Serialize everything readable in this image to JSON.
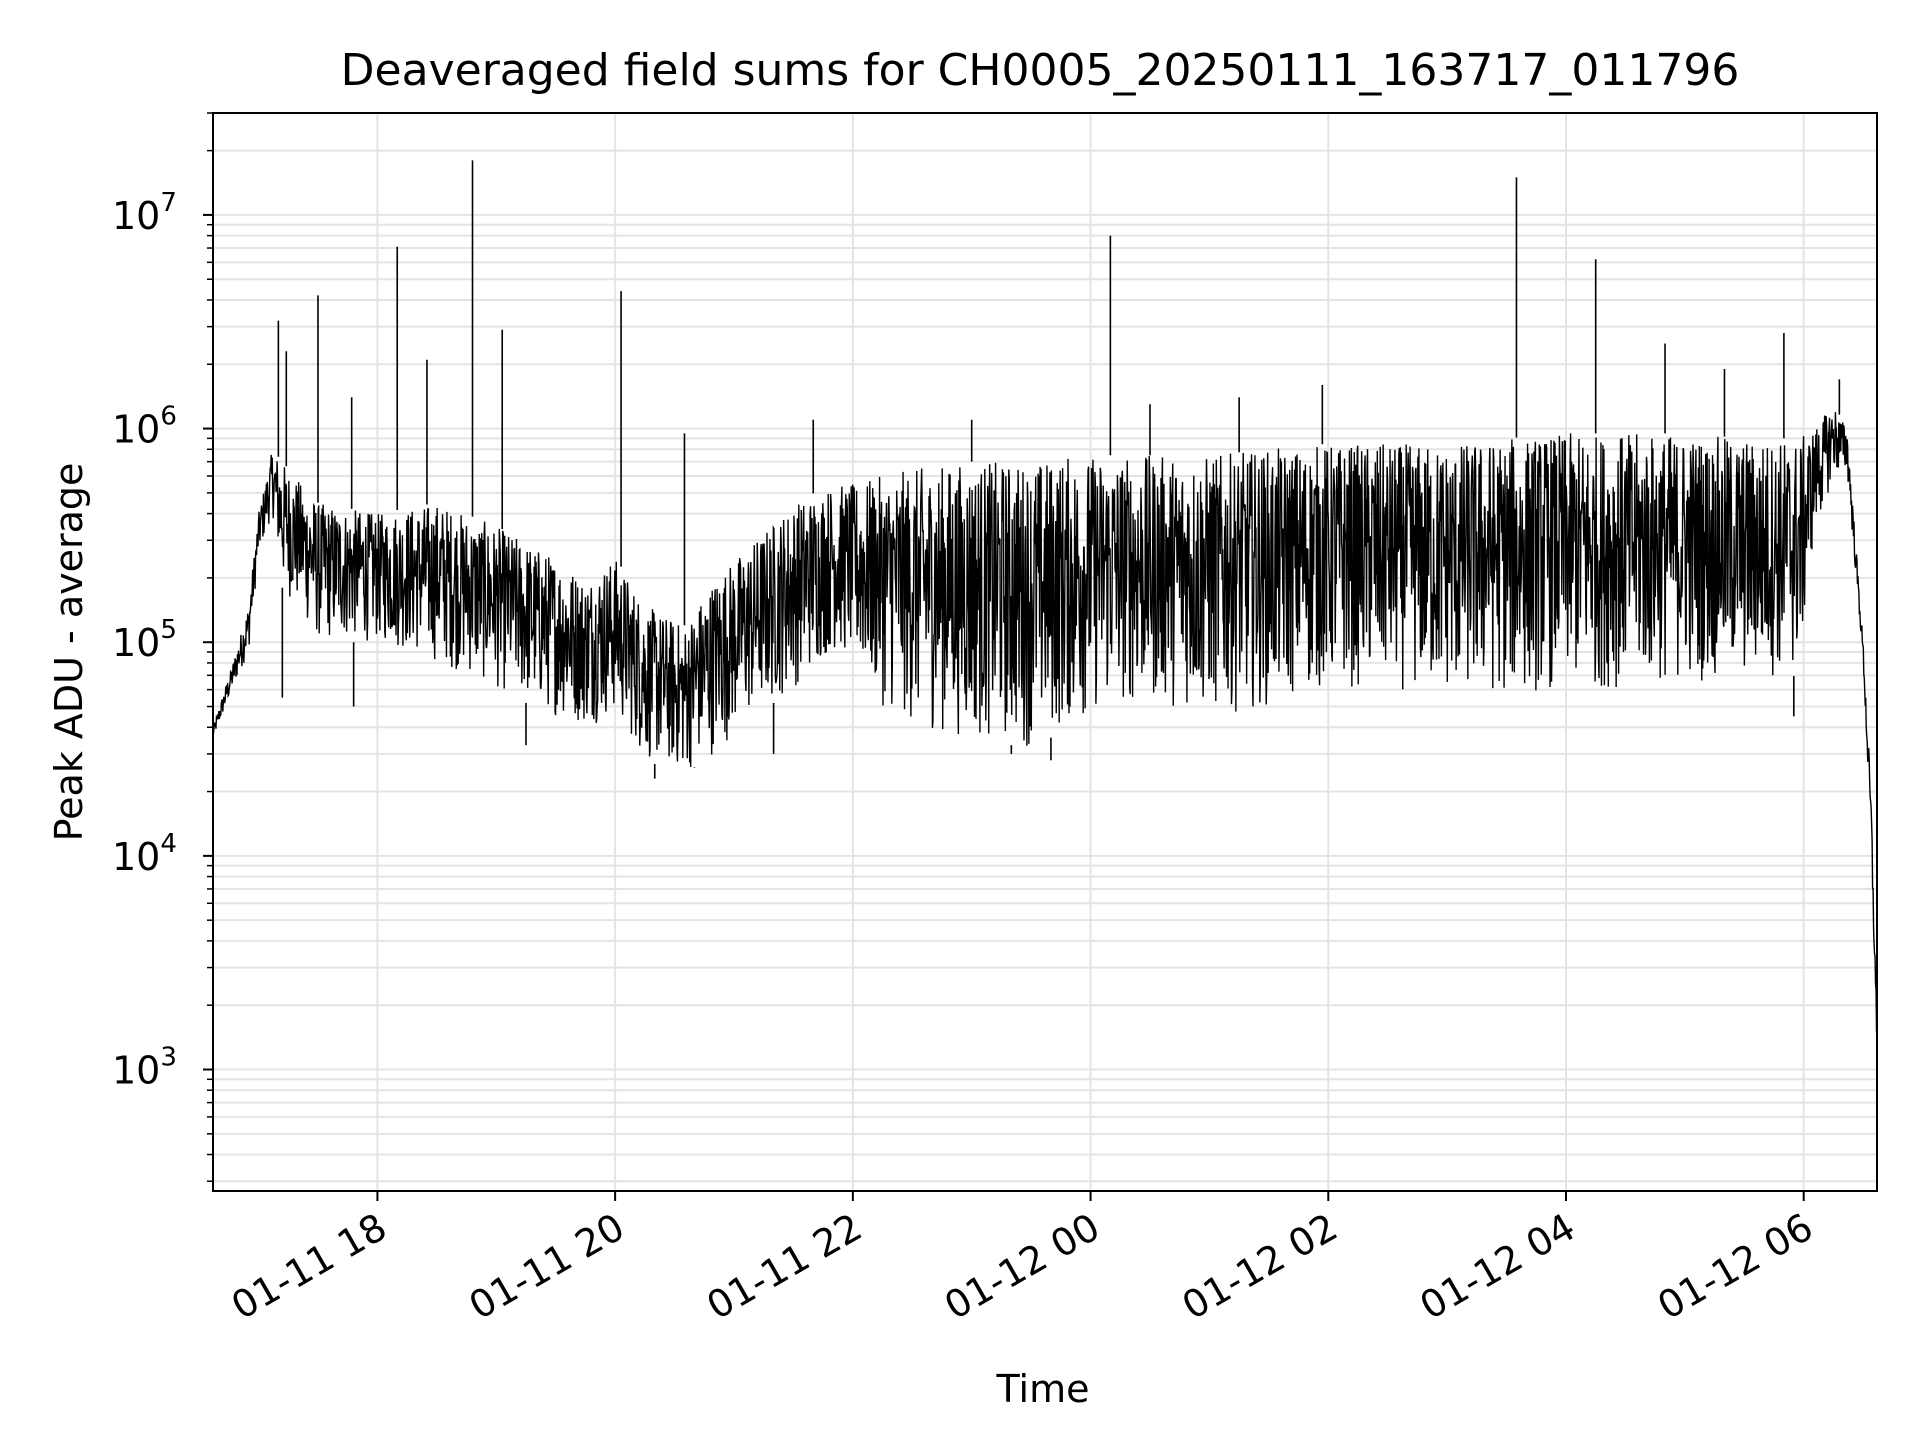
{
  "chart_data": {
    "type": "line",
    "title": "Deaveraged field sums for CH0005_20250111_163717_011796",
    "xlabel": "Time",
    "ylabel": "Peak ADU - average",
    "y_scale": "log",
    "ylim": [
      270,
      30000000
    ],
    "xlim": [
      "2025-01-11 16:37",
      "2025-01-12 06:37"
    ],
    "grid": "major and minor",
    "line_color": "#000000",
    "grid_color": "#e4e4e4",
    "x_ticks": [
      {
        "value": "2025-01-11 18:00",
        "label": "01-11 18"
      },
      {
        "value": "2025-01-11 20:00",
        "label": "01-11 20"
      },
      {
        "value": "2025-01-11 22:00",
        "label": "01-11 22"
      },
      {
        "value": "2025-01-12 00:00",
        "label": "01-12 00"
      },
      {
        "value": "2025-01-12 02:00",
        "label": "01-12 02"
      },
      {
        "value": "2025-01-12 04:00",
        "label": "01-12 04"
      },
      {
        "value": "2025-01-12 06:00",
        "label": "01-12 06"
      }
    ],
    "y_ticks": [
      {
        "value": 1000,
        "base": "10",
        "exp": "3"
      },
      {
        "value": 10000,
        "base": "10",
        "exp": "4"
      },
      {
        "value": 100000,
        "base": "10",
        "exp": "5"
      },
      {
        "value": 1000000,
        "base": "10",
        "exp": "6"
      },
      {
        "value": 10000000,
        "base": "10",
        "exp": "7"
      }
    ],
    "series": [
      {
        "envelope_lower": [
          [
            "2025-01-11 16:37",
            35000
          ],
          [
            "2025-01-11 16:47",
            60000
          ],
          [
            "2025-01-11 16:55",
            90000
          ],
          [
            "2025-01-11 17:00",
            250000
          ],
          [
            "2025-01-11 17:07",
            400000
          ],
          [
            "2025-01-11 17:12",
            180000
          ],
          [
            "2025-01-11 17:30",
            100000
          ],
          [
            "2025-01-11 18:00",
            100000
          ],
          [
            "2025-01-11 18:30",
            80000
          ],
          [
            "2025-01-11 19:00",
            60000
          ],
          [
            "2025-01-11 19:30",
            45000
          ],
          [
            "2025-01-11 19:45",
            40000
          ],
          [
            "2025-01-11 20:00",
            45000
          ],
          [
            "2025-01-11 20:15",
            28000
          ],
          [
            "2025-01-11 20:35",
            24000
          ],
          [
            "2025-01-11 20:50",
            30000
          ],
          [
            "2025-01-11 21:10",
            45000
          ],
          [
            "2025-01-11 21:30",
            60000
          ],
          [
            "2025-01-11 21:50",
            90000
          ],
          [
            "2025-01-11 22:00",
            80000
          ],
          [
            "2025-01-11 22:15",
            50000
          ],
          [
            "2025-01-11 22:30",
            40000
          ],
          [
            "2025-01-11 23:00",
            35000
          ],
          [
            "2025-01-11 23:30",
            32000
          ],
          [
            "2025-01-11 23:50",
            40000
          ],
          [
            "2025-01-12 00:10",
            50000
          ],
          [
            "2025-01-12 00:40",
            50000
          ],
          [
            "2025-01-12 01:00",
            45000
          ],
          [
            "2025-01-12 01:30",
            50000
          ],
          [
            "2025-01-12 02:00",
            60000
          ],
          [
            "2025-01-12 02:30",
            60000
          ],
          [
            "2025-01-12 03:00",
            55000
          ],
          [
            "2025-01-12 03:30",
            55000
          ],
          [
            "2025-01-12 04:00",
            60000
          ],
          [
            "2025-01-12 04:30",
            60000
          ],
          [
            "2025-01-12 05:00",
            65000
          ],
          [
            "2025-01-12 05:30",
            65000
          ],
          [
            "2025-01-12 05:58",
            70000
          ],
          [
            "2025-01-12 06:05",
            300000
          ],
          [
            "2025-01-12 06:15",
            600000
          ],
          [
            "2025-01-12 06:22",
            600000
          ],
          [
            "2025-01-12 06:30",
            80000
          ],
          [
            "2025-01-12 06:34",
            10000
          ],
          [
            "2025-01-12 06:37",
            1200
          ]
        ],
        "envelope_upper": [
          [
            "2025-01-11 16:37",
            40000
          ],
          [
            "2025-01-11 16:47",
            80000
          ],
          [
            "2025-01-11 16:55",
            150000
          ],
          [
            "2025-01-11 17:00",
            400000
          ],
          [
            "2025-01-11 17:07",
            800000
          ],
          [
            "2025-01-11 17:12",
            700000
          ],
          [
            "2025-01-11 17:30",
            450000
          ],
          [
            "2025-01-11 18:00",
            400000
          ],
          [
            "2025-01-11 18:30",
            450000
          ],
          [
            "2025-01-11 19:00",
            350000
          ],
          [
            "2025-01-11 19:30",
            250000
          ],
          [
            "2025-01-11 19:45",
            200000
          ],
          [
            "2025-01-11 20:00",
            250000
          ],
          [
            "2025-01-11 20:15",
            150000
          ],
          [
            "2025-01-11 20:35",
            120000
          ],
          [
            "2025-01-11 20:50",
            200000
          ],
          [
            "2025-01-11 21:10",
            300000
          ],
          [
            "2025-01-11 21:30",
            450000
          ],
          [
            "2025-01-11 21:50",
            550000
          ],
          [
            "2025-01-11 22:00",
            550000
          ],
          [
            "2025-01-11 22:15",
            600000
          ],
          [
            "2025-01-11 22:30",
            650000
          ],
          [
            "2025-01-11 23:00",
            700000
          ],
          [
            "2025-01-11 23:30",
            700000
          ],
          [
            "2025-01-11 23:50",
            750000
          ],
          [
            "2025-01-12 00:10",
            750000
          ],
          [
            "2025-01-12 00:40",
            750000
          ],
          [
            "2025-01-12 01:00",
            750000
          ],
          [
            "2025-01-12 01:30",
            800000
          ],
          [
            "2025-01-12 02:00",
            850000
          ],
          [
            "2025-01-12 02:30",
            850000
          ],
          [
            "2025-01-12 03:00",
            850000
          ],
          [
            "2025-01-12 03:30",
            900000
          ],
          [
            "2025-01-12 04:00",
            950000
          ],
          [
            "2025-01-12 04:30",
            950000
          ],
          [
            "2025-01-12 05:00",
            950000
          ],
          [
            "2025-01-12 05:30",
            900000
          ],
          [
            "2025-01-12 05:58",
            900000
          ],
          [
            "2025-01-12 06:05",
            1000000
          ],
          [
            "2025-01-12 06:15",
            1300000
          ],
          [
            "2025-01-12 06:22",
            1000000
          ],
          [
            "2025-01-12 06:30",
            100000
          ],
          [
            "2025-01-12 06:34",
            20000
          ],
          [
            "2025-01-12 06:37",
            1600
          ]
        ],
        "spikes": [
          [
            "2025-01-11 17:10",
            3200000
          ],
          [
            "2025-01-11 17:14",
            2300000
          ],
          [
            "2025-01-11 17:30",
            4200000
          ],
          [
            "2025-01-11 17:47",
            1400000
          ],
          [
            "2025-01-11 18:10",
            7100000
          ],
          [
            "2025-01-11 18:25",
            2100000
          ],
          [
            "2025-01-11 18:48",
            18000000
          ],
          [
            "2025-01-11 19:03",
            2900000
          ],
          [
            "2025-01-11 20:03",
            4400000
          ],
          [
            "2025-01-11 20:35",
            950000
          ],
          [
            "2025-01-11 21:40",
            1100000
          ],
          [
            "2025-01-11 23:00",
            1100000
          ],
          [
            "2025-01-12 00:10",
            8000000
          ],
          [
            "2025-01-12 00:30",
            1300000
          ],
          [
            "2025-01-12 01:15",
            1400000
          ],
          [
            "2025-01-12 01:57",
            1600000
          ],
          [
            "2025-01-12 03:35",
            15000000
          ],
          [
            "2025-01-12 04:15",
            6200000
          ],
          [
            "2025-01-12 04:50",
            2500000
          ],
          [
            "2025-01-12 05:20",
            1900000
          ],
          [
            "2025-01-12 05:50",
            2800000
          ],
          [
            "2025-01-12 06:18",
            1700000
          ]
        ],
        "dips": [
          [
            "2025-01-11 17:12",
            55000
          ],
          [
            "2025-01-11 17:48",
            50000
          ],
          [
            "2025-01-11 19:15",
            33000
          ],
          [
            "2025-01-11 20:20",
            23000
          ],
          [
            "2025-01-11 20:40",
            26000
          ],
          [
            "2025-01-11 21:20",
            30000
          ],
          [
            "2025-01-11 23:20",
            30000
          ],
          [
            "2025-01-11 23:40",
            28000
          ],
          [
            "2025-01-12 05:55",
            45000
          ]
        ]
      }
    ]
  }
}
